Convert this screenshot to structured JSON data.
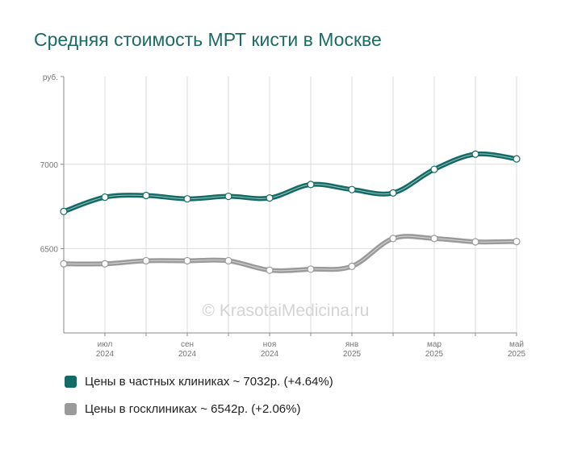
{
  "title": "Средняя стоимость МРТ кисти в Москве",
  "watermark": "© KrasotaiMedicina.ru",
  "chart_data": {
    "type": "line",
    "ylabel": "руб.",
    "ylim": [
      6000,
      7520
    ],
    "yticks": [
      6500,
      7000
    ],
    "x": [
      "2024-06",
      "2024-07",
      "2024-08",
      "2024-09",
      "2024-10",
      "2024-11",
      "2024-12",
      "2025-01",
      "2025-02",
      "2025-03",
      "2025-04",
      "2025-05"
    ],
    "xticklabels": [
      {
        "x": "2024-07",
        "month": "июл",
        "year": "2024"
      },
      {
        "x": "2024-09",
        "month": "сен",
        "year": "2024"
      },
      {
        "x": "2024-11",
        "month": "ноя",
        "year": "2024"
      },
      {
        "x": "2025-01",
        "month": "янв",
        "year": "2025"
      },
      {
        "x": "2025-03",
        "month": "мар",
        "year": "2025"
      },
      {
        "x": "2025-05",
        "month": "май",
        "year": "2025"
      }
    ],
    "grid": true,
    "legend_position": "bottom",
    "series": [
      {
        "name": "Цены в частных клиниках ~ 7032р. (+4.64%)",
        "color": "#136b65",
        "values": [
          6720,
          6805,
          6815,
          6795,
          6810,
          6800,
          6880,
          6850,
          6830,
          6970,
          7060,
          7032
        ]
      },
      {
        "name": "Цены в госклиниках ~ 6542р. (+2.06%)",
        "color": "#9a9a9a",
        "values": [
          6410,
          6410,
          6428,
          6428,
          6428,
          6372,
          6378,
          6395,
          6560,
          6560,
          6540,
          6542
        ]
      }
    ]
  },
  "legend": [
    {
      "label": "Цены в частных клиниках ~ 7032р. (+4.64%)",
      "color": "#136b65"
    },
    {
      "label": "Цены в госклиниках ~ 6542р. (+2.06%)",
      "color": "#9a9a9a"
    }
  ]
}
